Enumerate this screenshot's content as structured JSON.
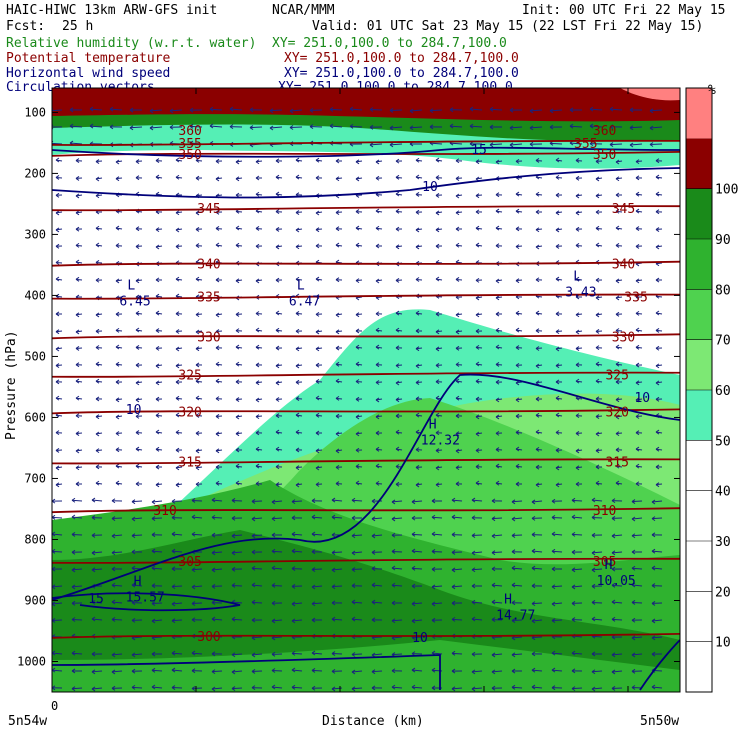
{
  "header": {
    "model": "HAIC-HIWC 13km ARW-GFS init",
    "org": "NCAR/MMM",
    "init": "Init: 00 UTC Fri 22 May 15",
    "fcst_label": "Fcst:",
    "fcst_value": "25 h",
    "valid": "Valid: 01 UTC Sat 23 May 15 (22 LST Fri 22 May 15)",
    "fields": [
      {
        "name": "Relative humidity (w.r.t. water)",
        "xy": "XY= 251.0,100.0 to 284.7,100.0",
        "color": "#1a8a1a"
      },
      {
        "name": "Potential temperature",
        "xy": "XY= 251.0,100.0 to 284.7,100.0",
        "color": "#8b0000"
      },
      {
        "name": "Horizontal wind speed",
        "xy": "XY= 251.0,100.0 to 284.7,100.0",
        "color": "#00007a"
      },
      {
        "name": "Circulation vectors",
        "xy": "XY= 251.0,100.0 to 284.7,100.0",
        "color": "#00007a"
      }
    ]
  },
  "chart_data": {
    "type": "heatmap",
    "ylabel": "Pressure (hPa)",
    "xlabel": "Distance (km)",
    "x_start_label": "0",
    "x_left_label": "5n54w",
    "x_right_label": "5n50w",
    "y_ticks": [
      100,
      200,
      300,
      400,
      500,
      600,
      700,
      800,
      900,
      1000
    ],
    "ylim": [
      1050,
      60
    ],
    "colorbar": {
      "unit": "%",
      "ticks": [
        10,
        20,
        30,
        40,
        50,
        60,
        70,
        80,
        90,
        100
      ],
      "bins": [
        {
          "from": 0,
          "to": 50,
          "color": "#ffffff"
        },
        {
          "from": 50,
          "to": 60,
          "color": "#55efb5"
        },
        {
          "from": 60,
          "to": 70,
          "color": "#7de874"
        },
        {
          "from": 70,
          "to": 80,
          "color": "#4fd24f"
        },
        {
          "from": 80,
          "to": 90,
          "color": "#2fb22f"
        },
        {
          "from": 90,
          "to": 100,
          "color": "#1a8a1a"
        },
        {
          "from": 100,
          "to": 110,
          "color": "#8b0000"
        },
        {
          "from": 110,
          "to": 120,
          "color": "#ff8080"
        }
      ]
    },
    "theta_contours": [
      {
        "value": 355,
        "p": 150,
        "label_at": [
          0.22,
          0.85
        ]
      },
      {
        "value": 350,
        "p": 168,
        "label_at": [
          0.22,
          0.88
        ]
      },
      {
        "value": 345,
        "p": 257,
        "label_at": [
          0.25,
          0.91
        ]
      },
      {
        "value": 340,
        "p": 348,
        "label_at": [
          0.25,
          0.91
        ]
      },
      {
        "value": 335,
        "p": 402,
        "label_at": [
          0.25,
          0.93
        ]
      },
      {
        "value": 330,
        "p": 467,
        "label_at": [
          0.25,
          0.91
        ]
      },
      {
        "value": 325,
        "p": 530,
        "label_at": [
          0.22,
          0.9
        ]
      },
      {
        "value": 320,
        "p": 590,
        "label_at": [
          0.22,
          0.9
        ]
      },
      {
        "value": 315,
        "p": 672,
        "label_at": [
          0.22,
          0.9
        ]
      },
      {
        "value": 310,
        "p": 752,
        "label_at": [
          0.18,
          0.88
        ]
      },
      {
        "value": 305,
        "p": 835,
        "label_at": [
          0.22,
          0.88
        ]
      },
      {
        "value": 300,
        "p": 958,
        "label_at": [
          0.25
        ]
      }
    ],
    "theta_top_labels": [
      {
        "value": 360,
        "at": 0.22
      },
      {
        "value": 360,
        "at": 0.88
      }
    ],
    "wind_contours": [
      {
        "value": 10,
        "label_at": [
          0.13,
          0.94
        ]
      },
      {
        "value": 15,
        "label_at": [
          0.68,
          0.07
        ]
      }
    ],
    "extrema": [
      {
        "type": "L",
        "value": "6.45",
        "x": 0.12,
        "p": 400
      },
      {
        "type": "L",
        "value": "6.47",
        "x": 0.39,
        "p": 400
      },
      {
        "type": "L",
        "value": "3.43",
        "x": 0.83,
        "p": 385
      },
      {
        "type": "H",
        "value": "12.32",
        "x": 0.6,
        "p": 628
      },
      {
        "type": "H",
        "value": "10.05",
        "x": 0.88,
        "p": 858
      },
      {
        "type": "H",
        "value": "15.57",
        "x": 0.13,
        "p": 885
      },
      {
        "type": "H",
        "value": "14.77",
        "x": 0.72,
        "p": 915
      }
    ]
  }
}
